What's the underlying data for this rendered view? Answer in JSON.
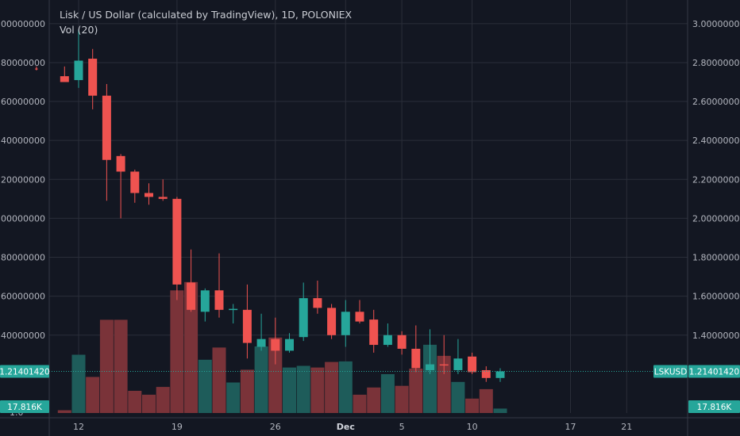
{
  "header": {
    "title": "Lisk / US Dollar (calculated by TradingView), 1D, POLONIEX",
    "indicator": "Vol (20)"
  },
  "colors": {
    "background": "#131722",
    "grid": "#2a2e39",
    "up": "#26a69a",
    "down": "#ef5350",
    "vol_up": "#1e5c5a",
    "vol_down": "#7a3339",
    "text": "#b2b5be"
  },
  "chart_data": {
    "type": "candlestick",
    "y_range": [
      1.0,
      3.04
    ],
    "y_ticks": [
      "3.00000000",
      "2.80000000",
      "2.60000000",
      "2.40000000",
      "2.20000000",
      "2.00000000",
      "1.80000000",
      "1.60000000",
      "1.40000000"
    ],
    "y_tick_values": [
      3.0,
      2.8,
      2.6,
      2.4,
      2.2,
      2.0,
      1.8,
      1.6,
      1.4
    ],
    "y_bottom_label": "1.0",
    "x_ticks": [
      {
        "label": "12",
        "day": 0
      },
      {
        "label": "19",
        "day": 7
      },
      {
        "label": "26",
        "day": 14
      },
      {
        "label": "Dec",
        "day": 19,
        "bold": true
      },
      {
        "label": "5",
        "day": 23
      },
      {
        "label": "10",
        "day": 28
      },
      {
        "label": "17",
        "day": 35
      },
      {
        "label": "21",
        "day": 39
      }
    ],
    "candles": [
      {
        "day": -3,
        "o": 2.77,
        "h": 2.78,
        "l": 2.76,
        "c": 2.765
      },
      {
        "day": -1,
        "o": 2.73,
        "h": 2.78,
        "l": 2.7,
        "c": 2.7
      },
      {
        "day": 0,
        "o": 2.71,
        "h": 2.97,
        "l": 2.67,
        "c": 2.81
      },
      {
        "day": 1,
        "o": 2.82,
        "h": 2.87,
        "l": 2.56,
        "c": 2.63
      },
      {
        "day": 2,
        "o": 2.63,
        "h": 2.69,
        "l": 2.09,
        "c": 2.3
      },
      {
        "day": 3,
        "o": 2.32,
        "h": 2.33,
        "l": 2.0,
        "c": 2.24
      },
      {
        "day": 4,
        "o": 2.24,
        "h": 2.25,
        "l": 2.08,
        "c": 2.13
      },
      {
        "day": 5,
        "o": 2.13,
        "h": 2.18,
        "l": 2.07,
        "c": 2.11
      },
      {
        "day": 6,
        "o": 2.11,
        "h": 2.2,
        "l": 2.09,
        "c": 2.1
      },
      {
        "day": 7,
        "o": 2.1,
        "h": 2.11,
        "l": 1.58,
        "c": 1.66
      },
      {
        "day": 8,
        "o": 1.67,
        "h": 1.84,
        "l": 1.52,
        "c": 1.53
      },
      {
        "day": 9,
        "o": 1.52,
        "h": 1.64,
        "l": 1.47,
        "c": 1.63
      },
      {
        "day": 10,
        "o": 1.63,
        "h": 1.82,
        "l": 1.49,
        "c": 1.53
      },
      {
        "day": 11,
        "o": 1.53,
        "h": 1.56,
        "l": 1.46,
        "c": 1.535
      },
      {
        "day": 12,
        "o": 1.53,
        "h": 1.66,
        "l": 1.28,
        "c": 1.36
      },
      {
        "day": 13,
        "o": 1.34,
        "h": 1.51,
        "l": 1.32,
        "c": 1.38
      },
      {
        "day": 14,
        "o": 1.38,
        "h": 1.49,
        "l": 1.25,
        "c": 1.32
      },
      {
        "day": 15,
        "o": 1.32,
        "h": 1.41,
        "l": 1.31,
        "c": 1.38
      },
      {
        "day": 16,
        "o": 1.39,
        "h": 1.67,
        "l": 1.37,
        "c": 1.59
      },
      {
        "day": 17,
        "o": 1.59,
        "h": 1.68,
        "l": 1.51,
        "c": 1.54
      },
      {
        "day": 18,
        "o": 1.54,
        "h": 1.56,
        "l": 1.38,
        "c": 1.4
      },
      {
        "day": 19,
        "o": 1.4,
        "h": 1.58,
        "l": 1.34,
        "c": 1.52
      },
      {
        "day": 20,
        "o": 1.52,
        "h": 1.58,
        "l": 1.46,
        "c": 1.47
      },
      {
        "day": 21,
        "o": 1.48,
        "h": 1.53,
        "l": 1.31,
        "c": 1.35
      },
      {
        "day": 22,
        "o": 1.35,
        "h": 1.46,
        "l": 1.34,
        "c": 1.4
      },
      {
        "day": 23,
        "o": 1.4,
        "h": 1.42,
        "l": 1.3,
        "c": 1.33
      },
      {
        "day": 24,
        "o": 1.33,
        "h": 1.45,
        "l": 1.21,
        "c": 1.23
      },
      {
        "day": 25,
        "o": 1.22,
        "h": 1.43,
        "l": 1.2,
        "c": 1.25
      },
      {
        "day": 26,
        "o": 1.25,
        "h": 1.4,
        "l": 1.2,
        "c": 1.245
      },
      {
        "day": 27,
        "o": 1.22,
        "h": 1.38,
        "l": 1.2,
        "c": 1.28
      },
      {
        "day": 28,
        "o": 1.29,
        "h": 1.31,
        "l": 1.2,
        "c": 1.21
      },
      {
        "day": 29,
        "o": 1.22,
        "h": 1.24,
        "l": 1.16,
        "c": 1.18
      },
      {
        "day": 30,
        "o": 1.18,
        "h": 1.23,
        "l": 1.16,
        "c": 1.214
      }
    ],
    "volume_scale": 2.0,
    "volumes": [
      {
        "day": -1,
        "v": 0.05,
        "dir": "down"
      },
      {
        "day": 0,
        "v": 1.05,
        "dir": "up"
      },
      {
        "day": 1,
        "v": 0.65,
        "dir": "down"
      },
      {
        "day": 2,
        "v": 1.68,
        "dir": "down"
      },
      {
        "day": 3,
        "v": 1.68,
        "dir": "down"
      },
      {
        "day": 4,
        "v": 0.4,
        "dir": "down"
      },
      {
        "day": 5,
        "v": 0.33,
        "dir": "down"
      },
      {
        "day": 6,
        "v": 0.47,
        "dir": "down"
      },
      {
        "day": 7,
        "v": 2.21,
        "dir": "down"
      },
      {
        "day": 8,
        "v": 2.36,
        "dir": "down"
      },
      {
        "day": 9,
        "v": 0.96,
        "dir": "up"
      },
      {
        "day": 10,
        "v": 1.18,
        "dir": "down"
      },
      {
        "day": 11,
        "v": 0.55,
        "dir": "up"
      },
      {
        "day": 12,
        "v": 0.78,
        "dir": "down"
      },
      {
        "day": 13,
        "v": 1.2,
        "dir": "up"
      },
      {
        "day": 14,
        "v": 1.36,
        "dir": "down"
      },
      {
        "day": 15,
        "v": 0.82,
        "dir": "up"
      },
      {
        "day": 16,
        "v": 0.85,
        "dir": "up"
      },
      {
        "day": 17,
        "v": 0.82,
        "dir": "down"
      },
      {
        "day": 18,
        "v": 0.92,
        "dir": "down"
      },
      {
        "day": 19,
        "v": 0.93,
        "dir": "up"
      },
      {
        "day": 20,
        "v": 0.33,
        "dir": "down"
      },
      {
        "day": 21,
        "v": 0.46,
        "dir": "down"
      },
      {
        "day": 22,
        "v": 0.7,
        "dir": "up"
      },
      {
        "day": 23,
        "v": 0.49,
        "dir": "down"
      },
      {
        "day": 24,
        "v": 0.8,
        "dir": "down"
      },
      {
        "day": 25,
        "v": 1.23,
        "dir": "up"
      },
      {
        "day": 26,
        "v": 1.03,
        "dir": "down"
      },
      {
        "day": 27,
        "v": 0.56,
        "dir": "up"
      },
      {
        "day": 28,
        "v": 0.26,
        "dir": "down"
      },
      {
        "day": 29,
        "v": 0.43,
        "dir": "down"
      },
      {
        "day": 30,
        "v": 0.08,
        "dir": "up"
      }
    ],
    "last_price": 1.214,
    "last_price_label": "1.21401420",
    "symbol_label": "LSKUSD",
    "volume_label": "17.816K"
  }
}
